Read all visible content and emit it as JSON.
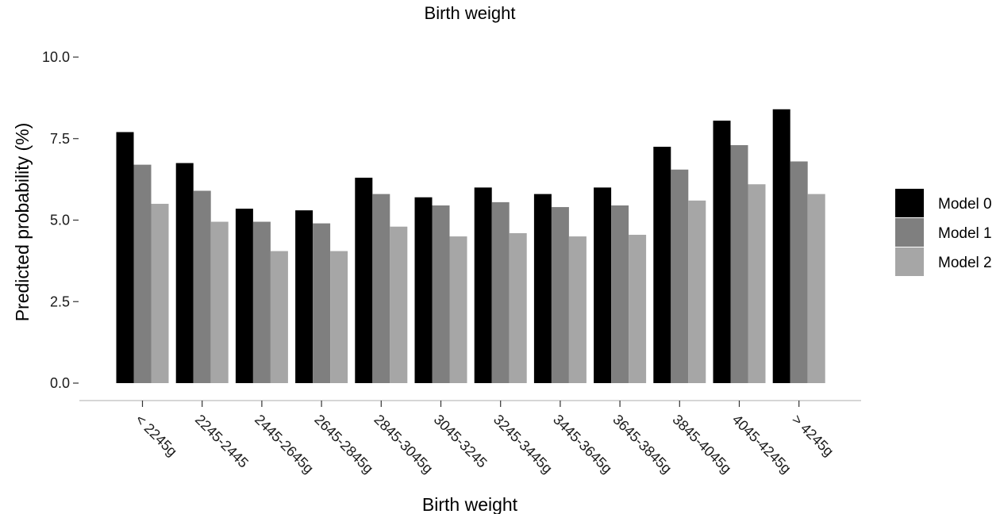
{
  "chart_data": {
    "type": "bar",
    "title": "Birth weight",
    "xlabel": "Birth weight",
    "ylabel": "Predicted probability (%)",
    "ylim": [
      0,
      10
    ],
    "yticks": [
      "0.0",
      "2.5",
      "5.0",
      "7.5",
      "10.0"
    ],
    "categories": [
      "< 2245g",
      "2245-2445",
      "2445-2645g",
      "2645-2845g",
      "2845-3045g",
      "3045-3245",
      "3245-3445g",
      "3445-3645g",
      "3645-3845g",
      "3845-4045g",
      "4045-4245g",
      "> 4245g"
    ],
    "series": [
      {
        "name": "Model 0",
        "color": "#000000",
        "values": [
          7.7,
          6.75,
          5.35,
          5.3,
          6.3,
          5.7,
          6.0,
          5.8,
          6.0,
          7.25,
          8.05,
          8.4
        ]
      },
      {
        "name": "Model 1",
        "color": "#7f7f7f",
        "values": [
          6.7,
          5.9,
          4.95,
          4.9,
          5.8,
          5.45,
          5.55,
          5.4,
          5.45,
          6.55,
          7.3,
          6.8
        ]
      },
      {
        "name": "Model 2",
        "color": "#a6a6a6",
        "values": [
          5.5,
          4.95,
          4.05,
          4.05,
          4.8,
          4.5,
          4.6,
          4.5,
          4.55,
          5.6,
          6.1,
          5.8
        ]
      }
    ],
    "grid": false,
    "legend_position": "right"
  }
}
